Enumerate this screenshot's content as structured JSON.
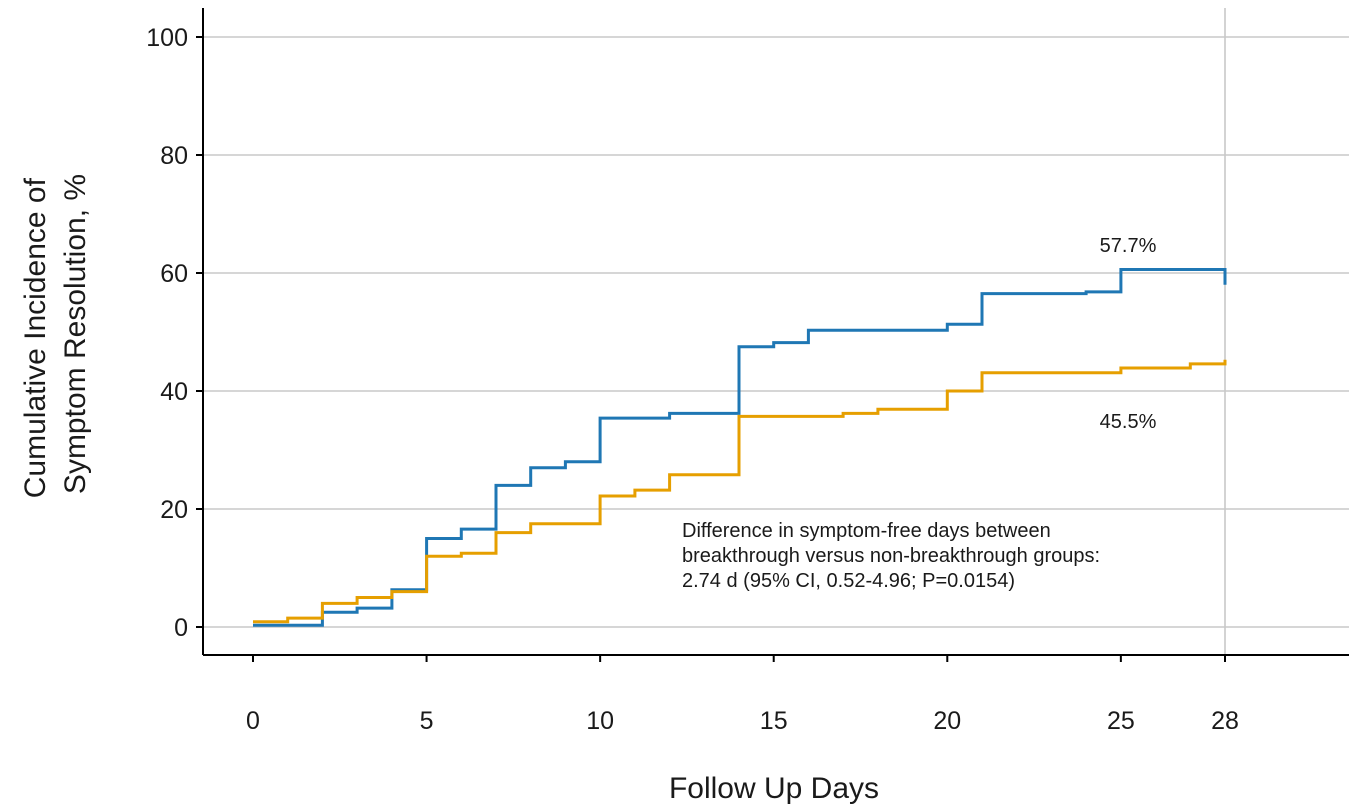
{
  "chart_data": {
    "type": "line",
    "step": true,
    "xlabel": "Follow Up Days",
    "ylabel_lines": [
      "Cumulative Incidence of",
      "Symptom Resolution, %"
    ],
    "x_ticks": [
      0,
      5,
      10,
      15,
      20,
      25,
      28
    ],
    "y_ticks": [
      0,
      20,
      40,
      60,
      80,
      100
    ],
    "xlim": [
      -1.5,
      31.5
    ],
    "ylim": [
      -5,
      105
    ],
    "grid": {
      "horizontal": true,
      "vertical_at_x": 28
    },
    "series": [
      {
        "color": "#1f77b4",
        "end_label": "57.7%",
        "points": [
          [
            0,
            0.3
          ],
          [
            2,
            0.3
          ],
          [
            2,
            2.5
          ],
          [
            3,
            2.5
          ],
          [
            3,
            3.2
          ],
          [
            4,
            3.2
          ],
          [
            4,
            6.3
          ],
          [
            5,
            6.3
          ],
          [
            5,
            15
          ],
          [
            6,
            15
          ],
          [
            6,
            16.6
          ],
          [
            7,
            16.6
          ],
          [
            7,
            24
          ],
          [
            8,
            24
          ],
          [
            8,
            27
          ],
          [
            9,
            27
          ],
          [
            9,
            28
          ],
          [
            10,
            28
          ],
          [
            10,
            35.4
          ],
          [
            12,
            35.4
          ],
          [
            12,
            36.2
          ],
          [
            14,
            36.2
          ],
          [
            14,
            47.5
          ],
          [
            15,
            47.5
          ],
          [
            15,
            48.2
          ],
          [
            16,
            48.2
          ],
          [
            16,
            50.3
          ],
          [
            20,
            50.3
          ],
          [
            20,
            51.3
          ],
          [
            21,
            51.3
          ],
          [
            21,
            56.5
          ],
          [
            24,
            56.5
          ],
          [
            24,
            56.8
          ],
          [
            25,
            56.8
          ],
          [
            25,
            60.6
          ],
          [
            28,
            60.6
          ],
          [
            28,
            58
          ]
        ]
      },
      {
        "color": "#e69f00",
        "end_label": "45.5%",
        "points": [
          [
            0,
            0.9
          ],
          [
            1,
            0.9
          ],
          [
            1,
            1.5
          ],
          [
            2,
            1.5
          ],
          [
            2,
            4
          ],
          [
            3,
            4
          ],
          [
            3,
            5
          ],
          [
            4,
            5
          ],
          [
            4,
            6
          ],
          [
            5,
            6
          ],
          [
            5,
            12
          ],
          [
            6,
            12
          ],
          [
            6,
            12.5
          ],
          [
            7,
            12.5
          ],
          [
            7,
            16
          ],
          [
            8,
            16
          ],
          [
            8,
            17.5
          ],
          [
            10,
            17.5
          ],
          [
            10,
            22.2
          ],
          [
            11,
            22.2
          ],
          [
            11,
            23.2
          ],
          [
            12,
            23.2
          ],
          [
            12,
            25.8
          ],
          [
            14,
            25.8
          ],
          [
            14,
            35.7
          ],
          [
            17,
            35.7
          ],
          [
            17,
            36.2
          ],
          [
            18,
            36.2
          ],
          [
            18,
            36.9
          ],
          [
            20,
            36.9
          ],
          [
            20,
            40
          ],
          [
            21,
            40
          ],
          [
            21,
            43.1
          ],
          [
            25,
            43.1
          ],
          [
            25,
            43.9
          ],
          [
            27,
            43.9
          ],
          [
            27,
            44.6
          ],
          [
            28,
            44.6
          ],
          [
            28,
            45.3
          ]
        ]
      }
    ],
    "annotation_lines": [
      "Difference in symptom-free days between",
      "breakthrough versus non-breakthrough groups:",
      "2.74 d (95% CI, 0.52-4.96; P=0.0154)"
    ]
  },
  "colors": {
    "series_1": "#1f77b4",
    "series_2": "#e69f00",
    "grid": "#c8c8c8",
    "axis": "#000000"
  }
}
